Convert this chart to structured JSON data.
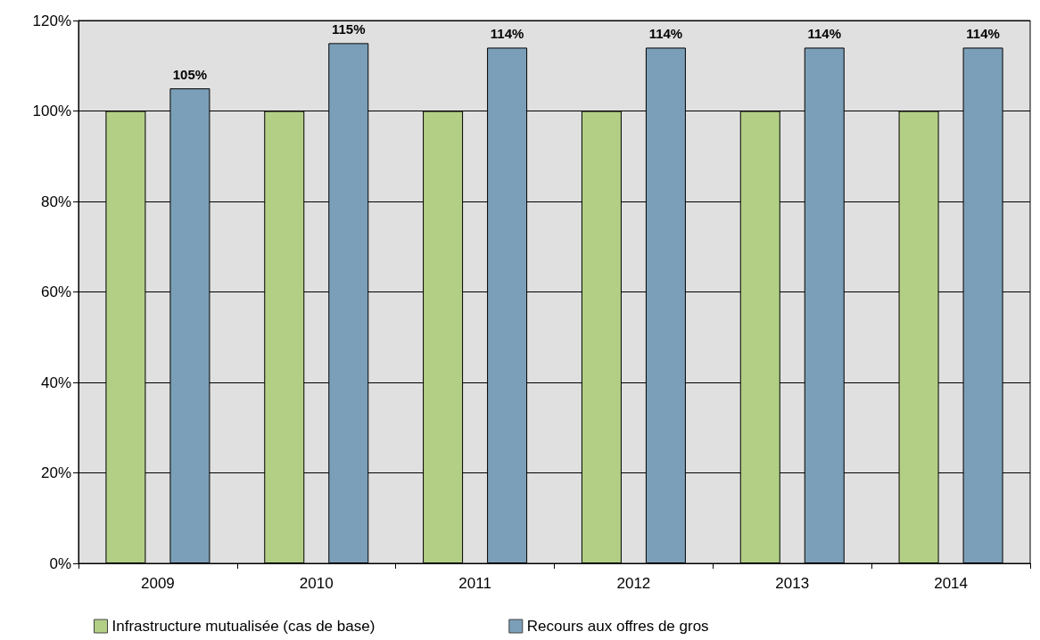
{
  "chart_data": {
    "type": "bar",
    "categories": [
      "2009",
      "2010",
      "2011",
      "2012",
      "2013",
      "2014"
    ],
    "series": [
      {
        "name": "Infrastructure mutualisée (cas de base)",
        "color": "#b3cf86",
        "values": [
          100,
          100,
          100,
          100,
          100,
          100
        ]
      },
      {
        "name": "Recours aux offres de gros",
        "color": "#7b9fb8",
        "values": [
          105,
          115,
          114,
          114,
          114,
          114
        ],
        "value_labels": [
          "105%",
          "115%",
          "114%",
          "114%",
          "114%",
          "114%"
        ]
      }
    ],
    "ylim": [
      0,
      120
    ],
    "yticks": [
      {
        "value": 0,
        "label": "0%"
      },
      {
        "value": 20,
        "label": "20%"
      },
      {
        "value": 40,
        "label": "40%"
      },
      {
        "value": 60,
        "label": "60%"
      },
      {
        "value": 80,
        "label": "80%"
      },
      {
        "value": 100,
        "label": "100%"
      },
      {
        "value": 120,
        "label": "120%"
      }
    ],
    "grid": "y",
    "legend": "bottom"
  }
}
